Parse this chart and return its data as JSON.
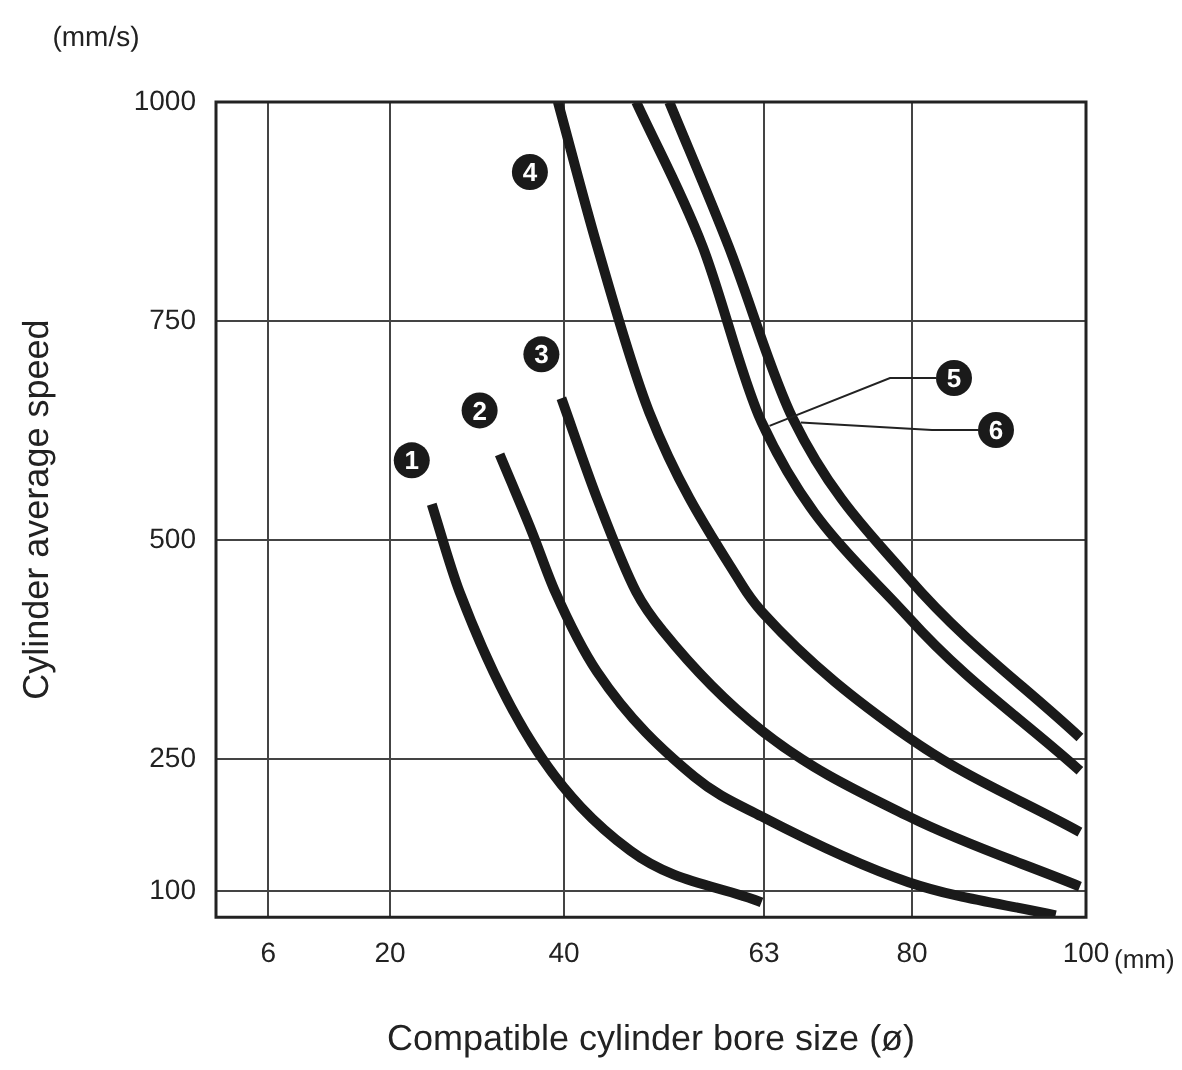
{
  "chart_data": {
    "type": "line",
    "xlabel": "Compatible cylinder bore size (ø)",
    "ylabel": "Cylinder average speed",
    "annotations": [
      "(mm/s)",
      "(mm)"
    ],
    "xlim": [
      0,
      100
    ],
    "xticks": [
      6,
      20,
      40,
      63,
      80,
      100
    ],
    "ylim": [
      70,
      1000
    ],
    "yticks": [
      100,
      250,
      500,
      750,
      1000
    ],
    "grid": true,
    "legend": false,
    "marker": "none",
    "line_style": "solid",
    "series": [
      {
        "name": "1",
        "color": "#1a1a1a",
        "x": [
          24.8,
          28,
          36.3,
          47.6,
          62.7
        ],
        "values": [
          541,
          441,
          269,
          146,
          87
        ]
      },
      {
        "name": "2",
        "color": "#1a1a1a",
        "x": [
          32.6,
          36.3,
          39,
          43.8,
          55,
          62.7,
          79.6,
          96.5
        ],
        "values": [
          598,
          510,
          441,
          350,
          230,
          185,
          110,
          72
        ]
      },
      {
        "name": "3",
        "color": "#1a1a1a",
        "x": [
          39.7,
          43.8,
          48.3,
          51.4,
          62.7,
          79.6,
          99.3
        ],
        "values": [
          662,
          548,
          441,
          396,
          283,
          185,
          105
        ]
      },
      {
        "name": "4",
        "color": "#1a1a1a",
        "x": [
          39.3,
          43.8,
          49.8,
          60.4,
          62.7,
          79.6,
          99.3
        ],
        "values": [
          1000,
          836,
          646,
          450,
          419,
          275,
          167
        ]
      },
      {
        "name": "5",
        "color": "#1a1a1a",
        "x": [
          48.3,
          55.9,
          62.7,
          79.6,
          99.3
        ],
        "values": [
          1000,
          836,
          635,
          412,
          237
        ]
      },
      {
        "name": "6",
        "color": "#1a1a1a",
        "x": [
          52.1,
          58.9,
          66.3,
          79.6,
          99.3
        ],
        "values": [
          1000,
          836,
          639,
          457,
          275
        ]
      }
    ]
  }
}
